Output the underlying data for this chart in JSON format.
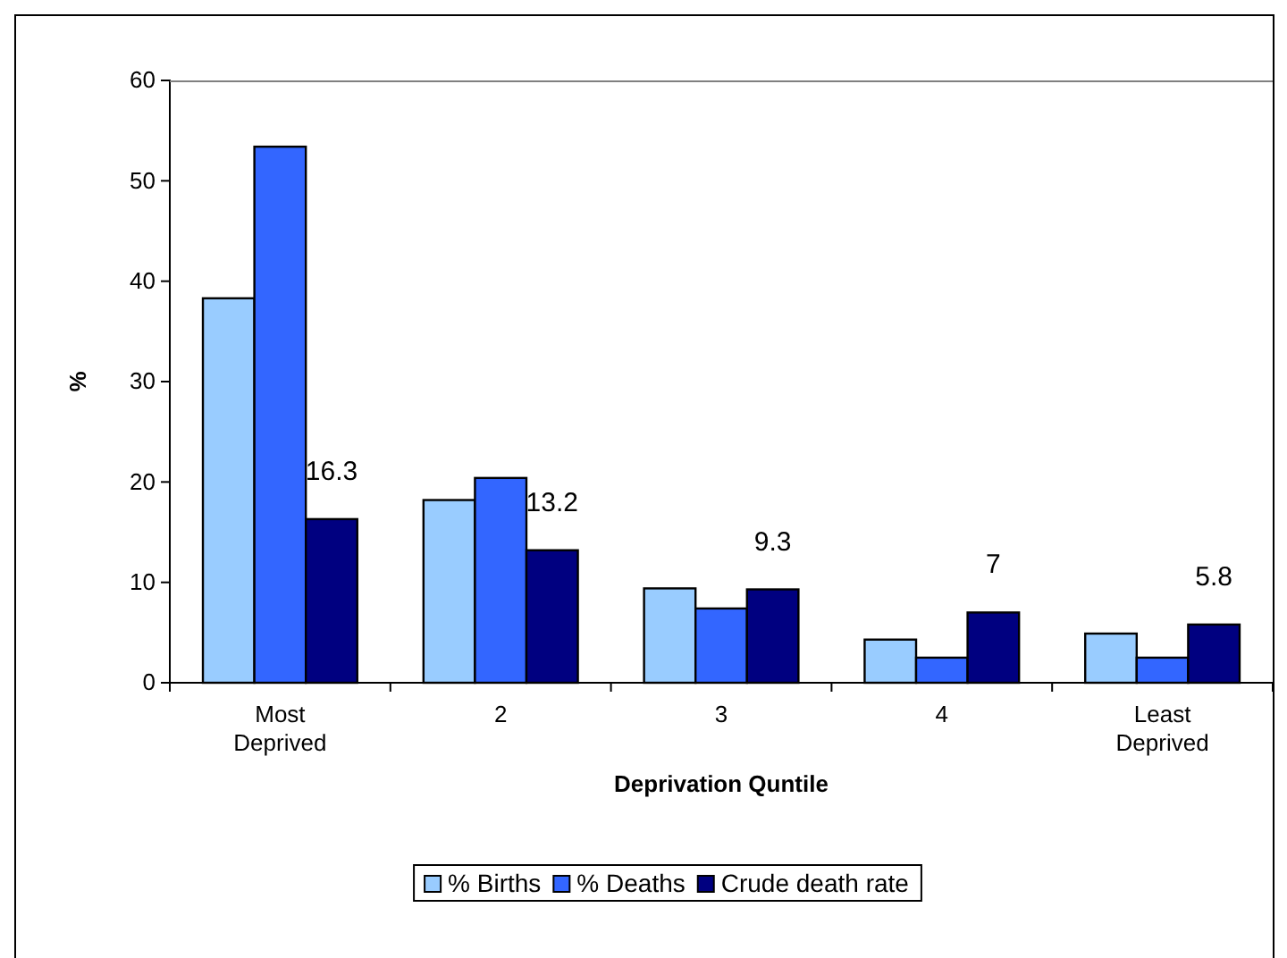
{
  "chart_data": {
    "type": "bar",
    "xlabel": "Deprivation Quntile",
    "ylabel": "%",
    "categories": [
      "Most Deprived",
      "2",
      "3",
      "4",
      "Least Deprived"
    ],
    "series": [
      {
        "name": "% Births",
        "color": "#99ccff",
        "values": [
          38.3,
          18.2,
          9.4,
          4.3,
          4.9
        ]
      },
      {
        "name": "% Deaths",
        "color": "#3366ff",
        "values": [
          53.4,
          20.4,
          7.4,
          2.5,
          2.5
        ]
      },
      {
        "name": "Crude death rate",
        "color": "#000080",
        "values": [
          16.3,
          13.2,
          9.3,
          7,
          5.8
        ],
        "value_labels": [
          "16.3",
          "13.2",
          "9.3",
          "7",
          "5.8"
        ]
      }
    ],
    "ylim": [
      0,
      60
    ],
    "yticks": [
      0,
      10,
      20,
      30,
      40,
      50,
      60
    ],
    "grid": false,
    "legend": "bottom"
  }
}
